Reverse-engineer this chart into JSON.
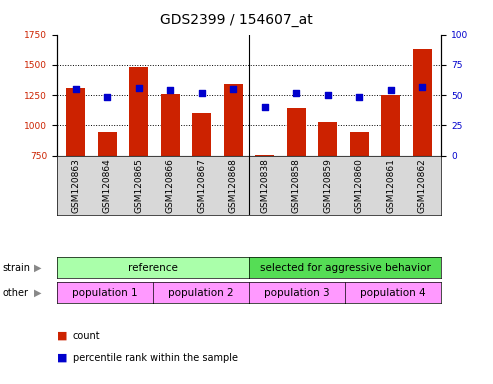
{
  "title": "GDS2399 / 154607_at",
  "samples": [
    "GSM120863",
    "GSM120864",
    "GSM120865",
    "GSM120866",
    "GSM120867",
    "GSM120868",
    "GSM120838",
    "GSM120858",
    "GSM120859",
    "GSM120860",
    "GSM120861",
    "GSM120862"
  ],
  "counts": [
    1310,
    945,
    1480,
    1255,
    1100,
    1340,
    755,
    1145,
    1025,
    945,
    1250,
    1630
  ],
  "percentiles": [
    55,
    48,
    56,
    54,
    52,
    55,
    40,
    52,
    50,
    48,
    54,
    57
  ],
  "ylim_left": [
    750,
    1750
  ],
  "ylim_right": [
    0,
    100
  ],
  "yticks_left": [
    750,
    1000,
    1250,
    1500,
    1750
  ],
  "yticks_right": [
    0,
    25,
    50,
    75,
    100
  ],
  "bar_color": "#CC2200",
  "dot_color": "#0000CC",
  "bg_color": "#FFFFFF",
  "plot_bg": "#FFFFFF",
  "xtick_bg": "#D8D8D8",
  "strain_ref_color": "#AAFFAA",
  "strain_sel_color": "#55DD55",
  "other_color": "#FF99FF",
  "strain_labels": [
    "reference",
    "selected for aggressive behavior"
  ],
  "other_labels": [
    "population 1",
    "population 2",
    "population 3",
    "population 4"
  ],
  "legend_count_label": "count",
  "legend_pct_label": "percentile rank within the sample",
  "xlabel_strain": "strain",
  "xlabel_other": "other",
  "title_fontsize": 10,
  "tick_fontsize": 6.5,
  "label_fontsize": 8,
  "annotation_fontsize": 7.5
}
